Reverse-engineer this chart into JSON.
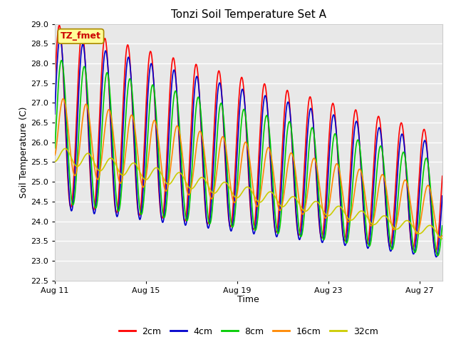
{
  "title": "Tonzi Soil Temperature Set A",
  "xlabel": "Time",
  "ylabel": "Soil Temperature (C)",
  "ylim": [
    22.5,
    29.0
  ],
  "yticks": [
    22.5,
    23.0,
    23.5,
    24.0,
    24.5,
    25.0,
    25.5,
    26.0,
    26.5,
    27.0,
    27.5,
    28.0,
    28.5,
    29.0
  ],
  "fig_bg_color": "#ffffff",
  "plot_bg_color": "#e8e8e8",
  "grid_color": "#ffffff",
  "annotation_text": "TZ_fmet",
  "annotation_fg": "#cc0000",
  "annotation_bg": "#ffff99",
  "annotation_border": "#aa8800",
  "series": [
    "2cm",
    "4cm",
    "8cm",
    "16cm",
    "32cm"
  ],
  "colors": [
    "#ff0000",
    "#0000cc",
    "#00cc00",
    "#ff8800",
    "#cccc00"
  ],
  "linewidths": [
    1.2,
    1.2,
    1.2,
    1.2,
    1.2
  ],
  "n_days": 17,
  "start_day": 11,
  "xtick_days": [
    11,
    15,
    19,
    23,
    27
  ],
  "xtick_labels": [
    "Aug 11",
    "Aug 15",
    "Aug 19",
    "Aug 23",
    "Aug 27"
  ]
}
